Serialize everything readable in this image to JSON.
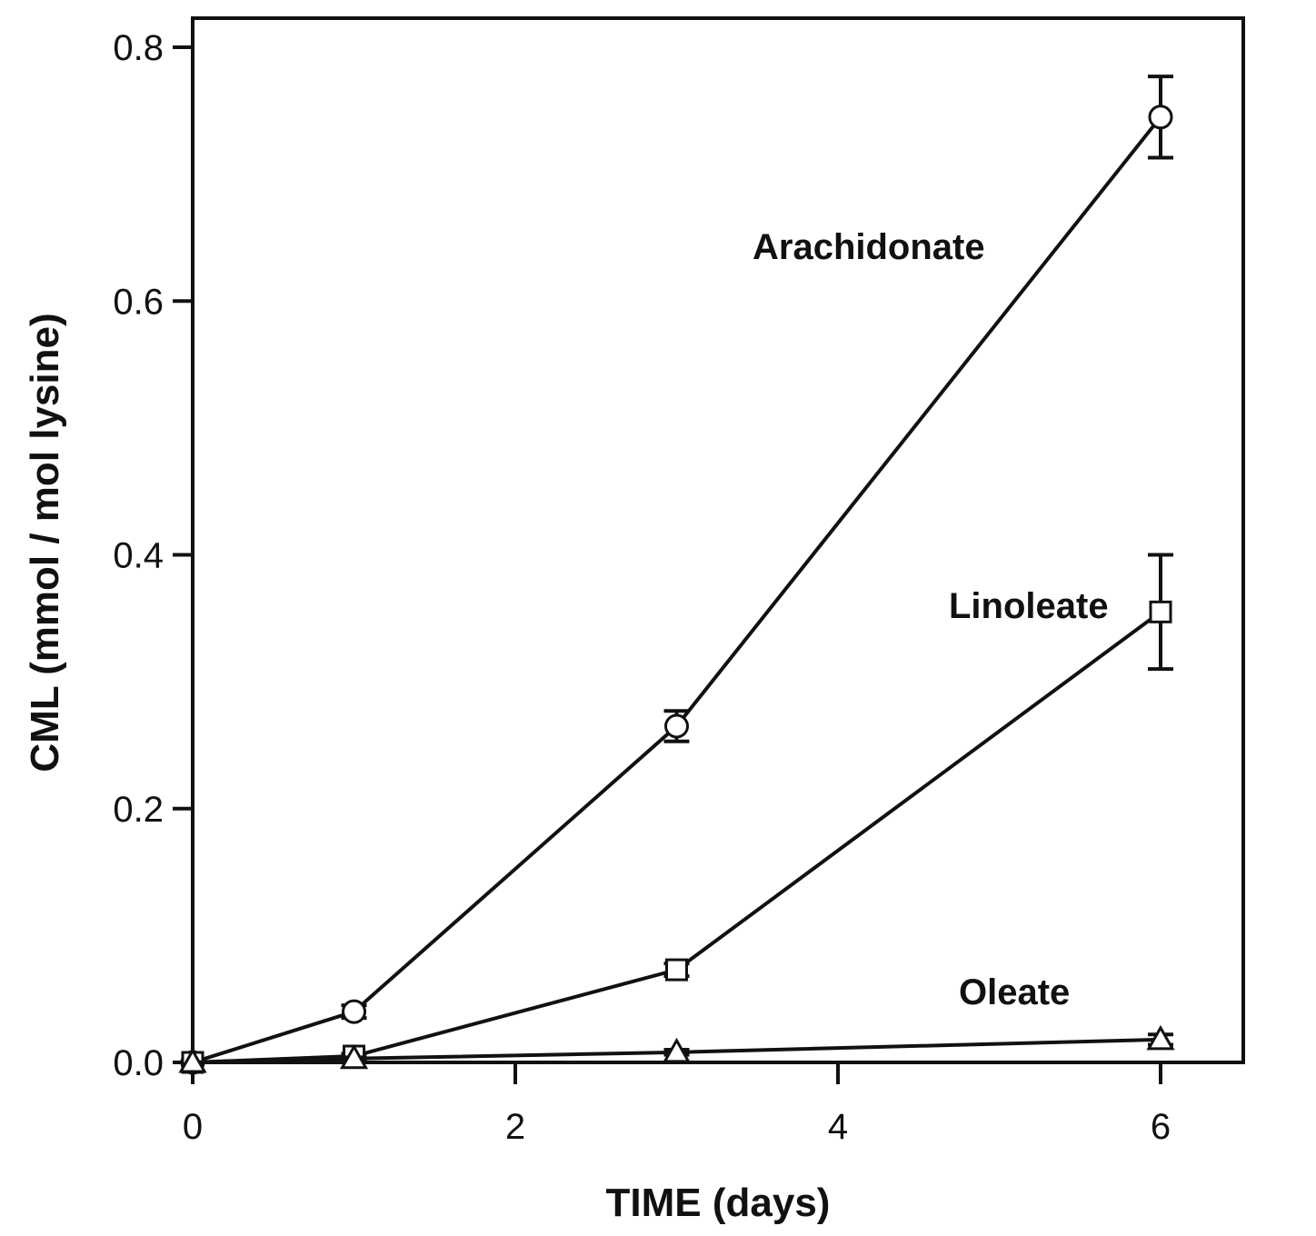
{
  "chart_data": {
    "type": "line",
    "xlabel": "TIME (days)",
    "ylabel": "CML (mmol / mol lysine)",
    "xlim": [
      0,
      6.5
    ],
    "ylim": [
      0,
      0.82
    ],
    "xticks": [
      0,
      2,
      4,
      6
    ],
    "xtick_labels": [
      "0",
      "2",
      "4",
      "6"
    ],
    "yticks": [
      0,
      0.2,
      0.4,
      0.6,
      0.8
    ],
    "ytick_labels": [
      "0.0",
      "0.2",
      "0.4",
      "0.6",
      "0.8"
    ],
    "grid": false,
    "legend": "none",
    "series": [
      {
        "name": "Arachidonate",
        "marker": "circle",
        "x": [
          0,
          1,
          3,
          6
        ],
        "y": [
          0.0,
          0.04,
          0.265,
          0.745
        ],
        "error": [
          0,
          0.005,
          0.012,
          0.032
        ]
      },
      {
        "name": "Linoleate",
        "marker": "square",
        "x": [
          0,
          1,
          3,
          6
        ],
        "y": [
          0.0,
          0.005,
          0.073,
          0.355
        ],
        "error": [
          0,
          0.002,
          0.005,
          0.045
        ]
      },
      {
        "name": "Oleate",
        "marker": "triangle",
        "x": [
          0,
          1,
          3,
          6
        ],
        "y": [
          0.0,
          0.003,
          0.008,
          0.018
        ],
        "error": [
          0,
          0.001,
          0.002,
          0.004
        ]
      }
    ]
  }
}
